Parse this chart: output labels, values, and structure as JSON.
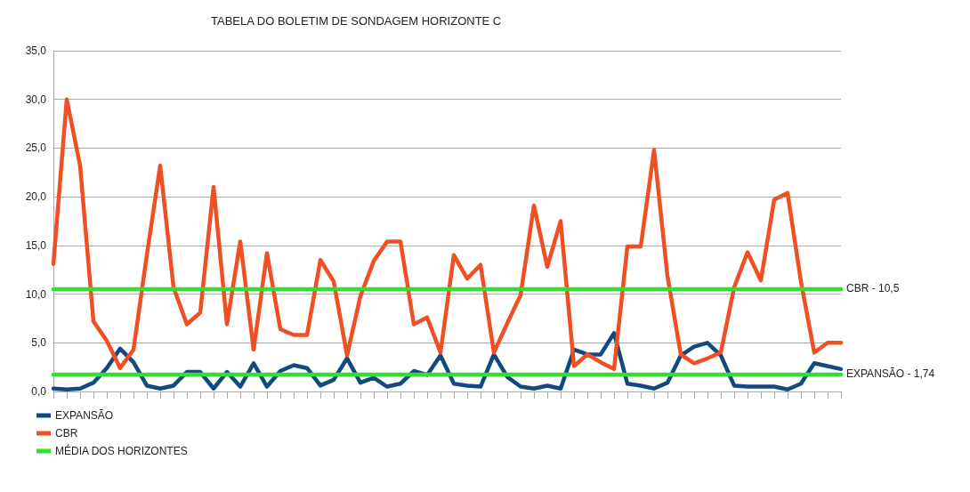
{
  "chart_data": {
    "type": "line",
    "title": "TABELA DO BOLETIM DE SONDAGEM HORIZONTE C",
    "categories": [
      null,
      null,
      null,
      null,
      null,
      null,
      null,
      null,
      null,
      null,
      null,
      null,
      null,
      null,
      null,
      null,
      null,
      null,
      null,
      null,
      null,
      null,
      null,
      null,
      null,
      null,
      null,
      null,
      null,
      null,
      null,
      null,
      null,
      null,
      null,
      null,
      null,
      null,
      null,
      null,
      null,
      null,
      null,
      null,
      null,
      null,
      null,
      null,
      null,
      null,
      null,
      null,
      null,
      null,
      null,
      null,
      null,
      null,
      null,
      null
    ],
    "series": [
      {
        "name": "EXPANSÃO",
        "color": "#124a7e",
        "values": [
          0.3,
          0.2,
          0.3,
          0.9,
          2.4,
          4.4,
          3.0,
          0.6,
          0.3,
          0.6,
          2.0,
          2.0,
          0.3,
          2.0,
          0.5,
          2.9,
          0.5,
          2.1,
          2.7,
          2.4,
          0.6,
          1.2,
          3.4,
          0.9,
          1.4,
          0.5,
          0.8,
          2.1,
          1.7,
          3.7,
          0.8,
          0.6,
          0.5,
          3.8,
          1.5,
          0.5,
          0.3,
          0.6,
          0.3,
          4.3,
          3.8,
          3.8,
          6.0,
          0.8,
          0.6,
          0.3,
          0.9,
          3.7,
          4.6,
          5.0,
          3.7,
          0.6,
          0.5,
          0.5,
          0.5,
          0.2,
          0.8,
          2.9,
          2.6,
          2.3
        ]
      },
      {
        "name": "CBR",
        "color": "#f04e23",
        "values": [
          13.1,
          30.0,
          23.2,
          7.2,
          5.2,
          2.4,
          4.3,
          14.0,
          23.2,
          10.7,
          6.9,
          8.1,
          21.0,
          6.9,
          15.4,
          4.3,
          14.2,
          6.4,
          5.8,
          5.8,
          13.5,
          11.3,
          3.7,
          9.8,
          13.4,
          15.4,
          15.4,
          6.9,
          7.6,
          4.0,
          14.0,
          11.6,
          13.0,
          4.0,
          7.0,
          9.9,
          19.1,
          12.8,
          17.5,
          2.6,
          3.8,
          3.0,
          2.3,
          14.9,
          14.9,
          24.8,
          11.9,
          3.8,
          2.9,
          3.4,
          4.0,
          10.7,
          14.3,
          11.4,
          19.7,
          20.4,
          11.3,
          4.0,
          5.0,
          5.0
        ]
      },
      {
        "name": "MÉDIA DOS HORIZONTES",
        "color": "#33dd33",
        "values": [
          10.5,
          10.5,
          10.5,
          10.5,
          10.5,
          10.5,
          10.5,
          10.5,
          10.5,
          10.5,
          10.5,
          10.5,
          10.5,
          10.5,
          10.5,
          10.5,
          10.5,
          10.5,
          10.5,
          10.5,
          10.5,
          10.5,
          10.5,
          10.5,
          10.5,
          10.5,
          10.5,
          10.5,
          10.5,
          10.5,
          10.5,
          10.5,
          10.5,
          10.5,
          10.5,
          10.5,
          10.5,
          10.5,
          10.5,
          10.5,
          10.5,
          10.5,
          10.5,
          10.5,
          10.5,
          10.5,
          10.5,
          10.5,
          10.5,
          10.5,
          10.5,
          10.5,
          10.5,
          10.5,
          10.5,
          10.5,
          10.5,
          10.5,
          10.5,
          10.5
        ]
      },
      {
        "color": "#33dd33",
        "values": [
          1.74,
          1.74,
          1.74,
          1.74,
          1.74,
          1.74,
          1.74,
          1.74,
          1.74,
          1.74,
          1.74,
          1.74,
          1.74,
          1.74,
          1.74,
          1.74,
          1.74,
          1.74,
          1.74,
          1.74,
          1.74,
          1.74,
          1.74,
          1.74,
          1.74,
          1.74,
          1.74,
          1.74,
          1.74,
          1.74,
          1.74,
          1.74,
          1.74,
          1.74,
          1.74,
          1.74,
          1.74,
          1.74,
          1.74,
          1.74,
          1.74,
          1.74,
          1.74,
          1.74,
          1.74,
          1.74,
          1.74,
          1.74,
          1.74,
          1.74,
          1.74,
          1.74,
          1.74,
          1.74,
          1.74,
          1.74,
          1.74,
          1.74,
          1.74,
          1.74
        ]
      }
    ],
    "annotations": [
      "CBR - 10,5",
      "EXPANSÃO - 1,74"
    ],
    "ylim": [
      0,
      35
    ],
    "yticks": [
      {
        "value": 0,
        "label": "0,0"
      },
      {
        "value": 5,
        "label": "5,0"
      },
      {
        "value": 10,
        "label": "10,0"
      },
      {
        "value": 15,
        "label": "15,0"
      },
      {
        "value": 20,
        "label": "20,0"
      },
      {
        "value": 25,
        "label": "25,0"
      },
      {
        "value": 30,
        "label": "30,0"
      },
      {
        "value": 35,
        "label": "35,0"
      }
    ],
    "grid": "y",
    "legend": "bottom left",
    "marker": "none",
    "line_style": "solid"
  }
}
